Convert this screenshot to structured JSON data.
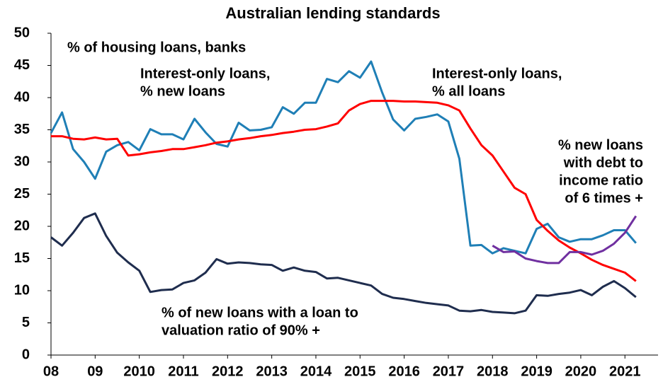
{
  "chart_data": {
    "type": "line",
    "title": "Australian lending standards",
    "ylabel": "% of housing loans, banks",
    "x": [
      2008,
      2008.25,
      2008.5,
      2008.75,
      2009,
      2009.25,
      2009.5,
      2009.75,
      2010,
      2010.25,
      2010.5,
      2010.75,
      2011,
      2011.25,
      2011.5,
      2011.75,
      2012,
      2012.25,
      2012.5,
      2012.75,
      2013,
      2013.25,
      2013.5,
      2013.75,
      2014,
      2014.25,
      2014.5,
      2014.75,
      2015,
      2015.25,
      2015.5,
      2015.75,
      2016,
      2016.25,
      2016.5,
      2016.75,
      2017,
      2017.25,
      2017.5,
      2017.75,
      2018,
      2018.25,
      2018.5,
      2018.75,
      2019,
      2019.25,
      2019.5,
      2019.75,
      2020,
      2020.25,
      2020.5,
      2020.75,
      2021,
      2021.25
    ],
    "series": [
      {
        "color": "#1f7fb6",
        "values": [
          34.5,
          37.7,
          32,
          30,
          27.4,
          31.6,
          32.6,
          33.1,
          31.8,
          35.1,
          34.3,
          34.3,
          33.5,
          36.7,
          34.6,
          32.8,
          32.4,
          36.1,
          34.9,
          35.0,
          35.4,
          38.5,
          37.5,
          39.2,
          39.2,
          42.9,
          42.4,
          44.1,
          43.1,
          45.6,
          40.8,
          36.6,
          34.9,
          36.7,
          37.0,
          37.4,
          36.3,
          30.5,
          17.0,
          17.1,
          15.8,
          16.6,
          16.2,
          15.8,
          19.6,
          20.4,
          18.3,
          17.6,
          18.0,
          18.0,
          18.6,
          19.4,
          19.4,
          17.4
        ]
      },
      {
        "color": "#ff0000",
        "values": [
          34.0,
          34.0,
          33.6,
          33.5,
          33.8,
          33.5,
          33.6,
          31.0,
          31.2,
          31.5,
          31.7,
          32.0,
          32.0,
          32.3,
          32.6,
          33.0,
          33.2,
          33.5,
          33.7,
          34.0,
          34.2,
          34.5,
          34.7,
          35.0,
          35.1,
          35.5,
          36.0,
          38.0,
          39.0,
          39.5,
          39.5,
          39.5,
          39.4,
          39.4,
          39.3,
          39.2,
          38.8,
          38.0,
          35.2,
          32.6,
          31.0,
          28.5,
          26.0,
          25.0,
          21.0,
          19.3,
          17.8,
          16.7,
          15.8,
          14.8,
          14.0,
          13.4,
          12.8,
          11.5
        ]
      },
      {
        "color": "#1f2d4e",
        "values": [
          18.3,
          17.0,
          19.0,
          21.3,
          22.0,
          18.5,
          15.9,
          14.4,
          13.1,
          9.8,
          10.1,
          10.2,
          11.2,
          11.6,
          12.8,
          14.9,
          14.2,
          14.4,
          14.3,
          14.1,
          14.0,
          13.1,
          13.6,
          13.1,
          12.9,
          11.9,
          12.0,
          11.6,
          11.2,
          10.8,
          9.5,
          8.9,
          8.7,
          8.4,
          8.1,
          7.9,
          7.7,
          6.9,
          6.8,
          7.0,
          6.7,
          6.6,
          6.5,
          6.9,
          9.3,
          9.2,
          9.5,
          9.7,
          10.1,
          9.3,
          10.6,
          11.5,
          10.4,
          9.0
        ]
      },
      {
        "color": "#7030a0",
        "values": [
          null,
          null,
          null,
          null,
          null,
          null,
          null,
          null,
          null,
          null,
          null,
          null,
          null,
          null,
          null,
          null,
          null,
          null,
          null,
          null,
          null,
          null,
          null,
          null,
          null,
          null,
          null,
          null,
          null,
          null,
          null,
          null,
          null,
          null,
          null,
          null,
          null,
          null,
          null,
          null,
          17.0,
          16.0,
          16.1,
          15.0,
          14.6,
          14.3,
          14.3,
          16.0,
          16.0,
          15.6,
          16.2,
          17.3,
          19.0,
          21.6
        ]
      }
    ],
    "annotations": [
      {
        "lines": [
          "Interest-only loans,",
          "% new loans"
        ],
        "color": "#1f7fb6"
      },
      {
        "lines": [
          "Interest-only loans,",
          "% all loans"
        ],
        "color": "#ff0000"
      },
      {
        "lines": [
          "% new loans",
          "with debt to",
          "income ratio",
          "of 6 times +"
        ],
        "color": "#7030a0"
      },
      {
        "lines": [
          "% of new loans with a loan to",
          "valuation ratio of 90% +"
        ],
        "color": "#1f2d4e"
      }
    ],
    "xlim": [
      2008,
      2021.75
    ],
    "xticks": [
      {
        "value": 2008,
        "label": "08"
      },
      {
        "value": 2009,
        "label": "09"
      },
      2010,
      2011,
      2012,
      2013,
      2014,
      2015,
      2016,
      2017,
      2018,
      2019,
      2020,
      2021
    ],
    "ylim": [
      0,
      50
    ],
    "yticks": [
      0,
      5,
      10,
      15,
      20,
      25,
      30,
      35,
      40,
      45,
      50
    ]
  }
}
